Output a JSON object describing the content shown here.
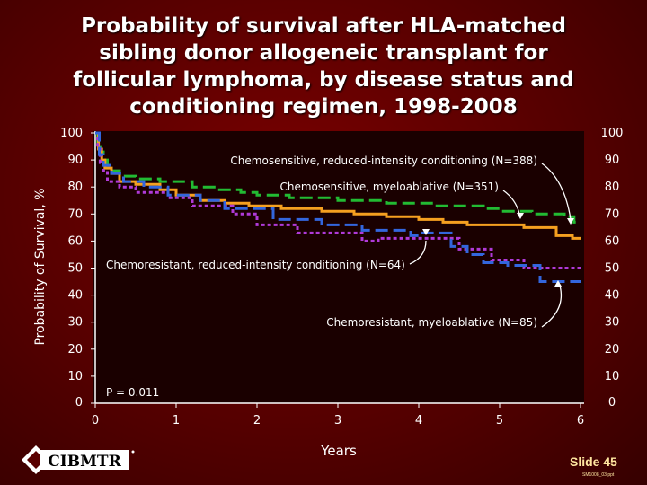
{
  "slide": {
    "title": "Probability of survival after HLA-matched sibling donor allogeneic transplant for follicular lymphoma, by disease status and conditioning regimen, 1998-2008",
    "slide_number": "Slide 45",
    "file_id": "SM1008_03.ppt",
    "logo_text": "CIBMTR",
    "colors": {
      "background": "#5a0000",
      "plot_area": "#1a0000",
      "text": "#ffffff"
    }
  },
  "chart_data": {
    "type": "line",
    "step": true,
    "title": "Probability of survival after HLA-matched sibling donor allogeneic transplant for follicular lymphoma, by disease status and conditioning regimen, 1998-2008",
    "xlabel": "Years",
    "ylabel": "Probability of Survival, %",
    "xlim": [
      0,
      6
    ],
    "ylim": [
      0,
      100
    ],
    "x_ticks": [
      "0",
      "1",
      "2",
      "3",
      "4",
      "5",
      "6"
    ],
    "y_ticks": [
      "0",
      "10",
      "20",
      "30",
      "40",
      "50",
      "60",
      "70",
      "80",
      "90",
      "100"
    ],
    "y_ticks_right": [
      "0",
      "10",
      "20",
      "30",
      "40",
      "50",
      "60",
      "70",
      "80",
      "90",
      "100"
    ],
    "grid": false,
    "p_value": "P = 0.011",
    "series": [
      {
        "name": "Chemosensitive, reduced-intensity conditioning (N=388)",
        "color": "#22bb33",
        "dash": "dashed",
        "points": [
          [
            0,
            100
          ],
          [
            0.03,
            96
          ],
          [
            0.06,
            93
          ],
          [
            0.1,
            90
          ],
          [
            0.15,
            88
          ],
          [
            0.2,
            86
          ],
          [
            0.3,
            84
          ],
          [
            0.5,
            83
          ],
          [
            0.8,
            82
          ],
          [
            1.2,
            80
          ],
          [
            1.5,
            79
          ],
          [
            1.8,
            78
          ],
          [
            2,
            77
          ],
          [
            2.4,
            76
          ],
          [
            3,
            75
          ],
          [
            3.6,
            74
          ],
          [
            4.2,
            73
          ],
          [
            4.8,
            72
          ],
          [
            5,
            71
          ],
          [
            5.4,
            70
          ],
          [
            5.8,
            69
          ],
          [
            5.92,
            67
          ],
          [
            6,
            67
          ]
        ]
      },
      {
        "name": "Chemosensitive, myeloablative (N=351)",
        "color": "#f5a020",
        "dash": "solid",
        "points": [
          [
            0,
            100
          ],
          [
            0.04,
            94
          ],
          [
            0.08,
            90
          ],
          [
            0.12,
            87
          ],
          [
            0.2,
            85
          ],
          [
            0.3,
            82
          ],
          [
            0.5,
            81
          ],
          [
            0.8,
            79
          ],
          [
            1,
            77
          ],
          [
            1.3,
            75
          ],
          [
            1.6,
            74
          ],
          [
            1.9,
            73
          ],
          [
            2.3,
            72
          ],
          [
            2.8,
            71
          ],
          [
            3.2,
            70
          ],
          [
            3.6,
            69
          ],
          [
            4,
            68
          ],
          [
            4.3,
            67
          ],
          [
            4.6,
            66
          ],
          [
            5.3,
            65
          ],
          [
            5.7,
            62
          ],
          [
            5.9,
            61
          ],
          [
            6,
            61
          ]
        ]
      },
      {
        "name": "Chemoresistant, reduced-intensity conditioning (N=64)",
        "color": "#b03ad8",
        "dash": "dotted",
        "points": [
          [
            0,
            100
          ],
          [
            0.03,
            94
          ],
          [
            0.06,
            89
          ],
          [
            0.1,
            86
          ],
          [
            0.15,
            82
          ],
          [
            0.3,
            80
          ],
          [
            0.5,
            78
          ],
          [
            0.9,
            76
          ],
          [
            1.2,
            73
          ],
          [
            1.7,
            70
          ],
          [
            2,
            66
          ],
          [
            2.5,
            63
          ],
          [
            3.3,
            60
          ],
          [
            3.5,
            61
          ],
          [
            4.5,
            57
          ],
          [
            4.9,
            53
          ],
          [
            5.3,
            50
          ],
          [
            6,
            50
          ]
        ]
      },
      {
        "name": "Chemoresistant, myeloablative (N=85)",
        "color": "#3366dd",
        "dash": "dashed",
        "points": [
          [
            0,
            100
          ],
          [
            0.05,
            92
          ],
          [
            0.1,
            88
          ],
          [
            0.2,
            85
          ],
          [
            0.35,
            82
          ],
          [
            0.6,
            80
          ],
          [
            0.9,
            77
          ],
          [
            1.3,
            75
          ],
          [
            1.6,
            72
          ],
          [
            2.2,
            68
          ],
          [
            2.8,
            66
          ],
          [
            3.3,
            64
          ],
          [
            3.9,
            62
          ],
          [
            4,
            63
          ],
          [
            4.4,
            58
          ],
          [
            4.6,
            55
          ],
          [
            4.8,
            52
          ],
          [
            5.1,
            51
          ],
          [
            5.5,
            45
          ],
          [
            6,
            45
          ]
        ]
      }
    ],
    "annotations": [
      "Chemosensitive, reduced-intensity conditioning (N=388)",
      "Chemosensitive, myeloablative (N=351)",
      "Chemoresistant, reduced-intensity conditioning (N=64)",
      "Chemoresistant, myeloablative (N=85)"
    ]
  }
}
